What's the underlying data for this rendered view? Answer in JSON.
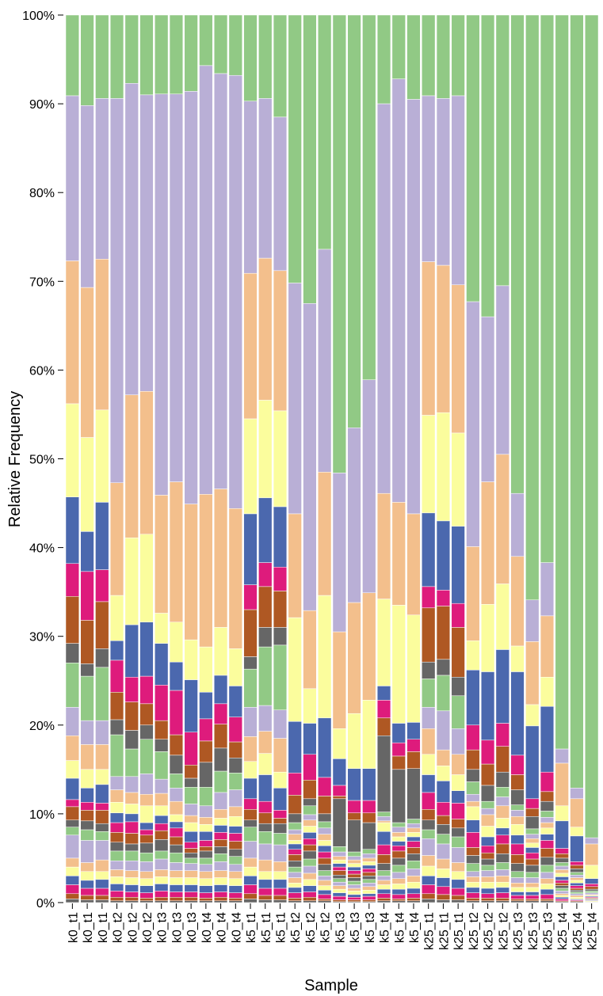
{
  "chart_data": {
    "type": "bar",
    "stacked": true,
    "xlabel": "Sample",
    "ylabel": "Relative Frequency",
    "ylim": [
      0,
      100
    ],
    "yticks": [
      "0%",
      "10%",
      "20%",
      "30%",
      "40%",
      "50%",
      "60%",
      "70%",
      "80%",
      "90%",
      "100%"
    ],
    "grid": false,
    "legend": "none",
    "categories": [
      "k0_t1",
      "k0_t1",
      "k0_t1",
      "k0_t2",
      "k0_t2",
      "k0_t2",
      "k0_t3",
      "k0_t3",
      "k0_t3",
      "k0_t4",
      "k0_t4",
      "k0_t4",
      "k5_t1",
      "k5_t1",
      "k5_t1",
      "k5_t2",
      "k5_t2",
      "k5_t2",
      "k5_t3",
      "k5_t3",
      "k5_t3",
      "k5_t4",
      "k5_t4",
      "k5_t4",
      "k25_t1",
      "k25_t1",
      "k25_t1",
      "k25_t2",
      "k25_t2",
      "k25_t2",
      "k25_t3",
      "k25_t3",
      "k25_t3",
      "k25_t4",
      "k25_t4",
      "k25_t4"
    ],
    "colors": [
      "#91c985",
      "#b9afd6",
      "#f3bf8c",
      "#fbfd9d",
      "#4b68ae",
      "#de1b7c",
      "#af5823",
      "#666666",
      "#91c985",
      "#b9afd6",
      "#f3bf8c",
      "#fbfd9d",
      "#4b68ae",
      "#de1b7c",
      "#af5823",
      "#666666",
      "#91c985",
      "#b9afd6",
      "#f3bf8c",
      "#fbfd9d",
      "#4b68ae",
      "#de1b7c",
      "#af5823",
      "#666666"
    ],
    "boundaries": [
      [
        100,
        90.9,
        72.3,
        56.2,
        45.7,
        38.2,
        34.5,
        29.2,
        27.0,
        22.0,
        18.8,
        16.0,
        14.0,
        11.6,
        10.8,
        9.3,
        8.5,
        7.6,
        5.0,
        4.0,
        3.0,
        2.0,
        1.0,
        0.4
      ],
      [
        100,
        89.8,
        69.3,
        52.4,
        41.8,
        37.3,
        31.8,
        26.9,
        25.5,
        20.5,
        17.8,
        15.0,
        12.9,
        11.3,
        10.4,
        9.2,
        8.2,
        7.0,
        4.5,
        3.5,
        2.5,
        1.6,
        0.8,
        0.3
      ],
      [
        100,
        90.6,
        72.5,
        55.5,
        45.1,
        37.5,
        33.9,
        28.6,
        26.5,
        20.5,
        17.8,
        15.0,
        13.3,
        11.2,
        10.4,
        8.9,
        8.0,
        7.0,
        4.8,
        3.5,
        2.6,
        1.6,
        0.8,
        0.3
      ],
      [
        100,
        90.6,
        47.3,
        34.6,
        29.5,
        27.3,
        23.7,
        20.6,
        18.9,
        14.2,
        12.7,
        11.3,
        10.1,
        9.0,
        7.9,
        6.8,
        5.8,
        4.7,
        3.7,
        2.9,
        2.1,
        1.3,
        0.6,
        0.2
      ],
      [
        100,
        92.3,
        57.2,
        41.1,
        31.3,
        25.4,
        22.6,
        19.4,
        17.3,
        14.2,
        12.4,
        11.1,
        10.0,
        9.1,
        7.8,
        6.6,
        5.8,
        4.7,
        3.6,
        2.8,
        2.0,
        1.2,
        0.6,
        0.2
      ],
      [
        100,
        91.0,
        57.6,
        41.5,
        31.6,
        25.5,
        22.4,
        20.0,
        18.4,
        14.5,
        12.2,
        10.9,
        9.0,
        8.2,
        7.6,
        6.7,
        5.6,
        4.6,
        3.5,
        2.7,
        1.9,
        1.1,
        0.5,
        0.2
      ],
      [
        100,
        91.1,
        45.9,
        32.6,
        29.2,
        24.5,
        20.5,
        18.4,
        17.0,
        13.9,
        12.3,
        10.9,
        9.8,
        8.9,
        8.1,
        7.1,
        5.8,
        4.9,
        3.7,
        2.9,
        2.1,
        1.3,
        0.6,
        0.2
      ],
      [
        100,
        91.1,
        47.4,
        31.6,
        27.1,
        23.9,
        18.9,
        16.6,
        14.5,
        12.9,
        11.4,
        9.9,
        9.1,
        8.4,
        7.4,
        6.5,
        5.6,
        4.5,
        3.6,
        2.8,
        2.0,
        1.2,
        0.6,
        0.2
      ],
      [
        100,
        91.4,
        44.9,
        29.6,
        25.1,
        19.2,
        15.5,
        14.0,
        13.0,
        11.1,
        9.8,
        9.0,
        8.0,
        6.8,
        6.1,
        5.6,
        5.0,
        4.4,
        3.6,
        2.8,
        2.0,
        1.2,
        0.6,
        0.2
      ],
      [
        100,
        94.3,
        46.0,
        28.8,
        23.7,
        20.7,
        18.2,
        15.8,
        13.0,
        10.9,
        9.6,
        8.8,
        8.0,
        7.0,
        6.3,
        5.8,
        5.0,
        4.3,
        3.5,
        2.7,
        1.9,
        1.1,
        0.5,
        0.2
      ],
      [
        100,
        93.4,
        46.6,
        31.0,
        25.6,
        22.4,
        20.1,
        17.4,
        14.8,
        12.4,
        10.5,
        9.5,
        8.7,
        7.9,
        7.1,
        6.3,
        5.5,
        4.6,
        3.6,
        2.8,
        2.0,
        1.2,
        0.6,
        0.2
      ],
      [
        100,
        93.2,
        44.4,
        28.6,
        24.4,
        20.9,
        18.1,
        16.3,
        14.6,
        12.7,
        10.8,
        9.7,
        8.6,
        7.8,
        6.9,
        6.0,
        5.2,
        4.3,
        3.5,
        2.7,
        1.9,
        1.1,
        0.5,
        0.2
      ],
      [
        100,
        90.3,
        70.9,
        54.5,
        43.8,
        35.8,
        33.0,
        27.7,
        26.3,
        22.0,
        18.7,
        15.9,
        14.0,
        11.7,
        10.5,
        9.3,
        8.5,
        6.9,
        5.0,
        4.0,
        3.0,
        2.0,
        1.0,
        0.4
      ],
      [
        100,
        90.6,
        72.6,
        56.6,
        45.6,
        38.3,
        35.6,
        31.0,
        28.8,
        22.2,
        19.3,
        16.8,
        14.4,
        11.4,
        10.1,
        8.9,
        8.0,
        6.6,
        4.8,
        3.5,
        2.6,
        1.6,
        0.8,
        0.3
      ],
      [
        100,
        88.5,
        71.2,
        55.4,
        44.6,
        37.8,
        35.1,
        31.0,
        29.0,
        21.7,
        18.5,
        14.7,
        12.9,
        10.4,
        9.5,
        8.9,
        7.8,
        6.5,
        4.6,
        3.5,
        2.6,
        1.6,
        0.8,
        0.3
      ],
      [
        100,
        69.8,
        43.8,
        32.1,
        20.4,
        14.6,
        12.1,
        10.0,
        9.0,
        8.2,
        7.7,
        7.0,
        6.6,
        6.0,
        5.4,
        4.7,
        4.0,
        3.4,
        2.8,
        2.2,
        1.7,
        1.1,
        0.5,
        0.2
      ],
      [
        100,
        67.5,
        32.9,
        24.1,
        20.2,
        16.7,
        13.8,
        11.7,
        10.9,
        9.9,
        9.3,
        8.6,
        7.9,
        7.2,
        6.5,
        5.8,
        4.9,
        4.1,
        3.3,
        2.6,
        1.9,
        1.2,
        0.6,
        0.2
      ],
      [
        100,
        73.6,
        48.5,
        34.6,
        20.8,
        14.1,
        12.0,
        10.0,
        9.1,
        8.4,
        7.7,
        7.0,
        6.4,
        5.7,
        5.0,
        4.3,
        3.6,
        3.0,
        2.5,
        1.9,
        1.4,
        0.9,
        0.4,
        0.2
      ],
      [
        100,
        48.4,
        30.5,
        19.6,
        16.2,
        13.2,
        12.0,
        11.7,
        6.3,
        5.7,
        5.2,
        4.8,
        4.4,
        4.0,
        3.6,
        3.1,
        2.7,
        2.3,
        1.9,
        1.5,
        1.1,
        0.7,
        0.3,
        0.1
      ],
      [
        100,
        53.5,
        33.8,
        21.3,
        15.1,
        11.5,
        10.1,
        9.3,
        5.7,
        5.2,
        4.8,
        4.4,
        4.0,
        3.6,
        3.2,
        2.8,
        2.4,
        2.0,
        1.6,
        1.3,
        0.9,
        0.6,
        0.3,
        0.1
      ],
      [
        100,
        58.9,
        34.9,
        22.8,
        15.1,
        11.5,
        10.1,
        9.0,
        6.0,
        5.5,
        5.0,
        4.6,
        4.2,
        3.8,
        3.4,
        3.0,
        2.6,
        2.2,
        1.8,
        1.4,
        1.0,
        0.7,
        0.3,
        0.1
      ],
      [
        100,
        90.0,
        46.1,
        34.2,
        24.4,
        22.8,
        20.8,
        18.8,
        10.2,
        9.7,
        9.2,
        9.0,
        8.0,
        6.5,
        5.4,
        4.4,
        3.6,
        3.0,
        2.5,
        2.0,
        1.5,
        1.0,
        0.5,
        0.2
      ],
      [
        100,
        92.8,
        45.1,
        33.5,
        20.2,
        18.0,
        16.5,
        15.0,
        9.0,
        8.5,
        7.9,
        7.4,
        6.9,
        6.4,
        5.8,
        5.0,
        4.2,
        3.4,
        2.7,
        2.1,
        1.5,
        0.9,
        0.4,
        0.2
      ],
      [
        100,
        90.5,
        43.8,
        32.4,
        20.3,
        18.4,
        17.0,
        15.1,
        9.4,
        8.9,
        8.4,
        7.9,
        7.4,
        6.9,
        6.2,
        5.5,
        4.7,
        3.8,
        3.0,
        2.3,
        1.6,
        1.0,
        0.5,
        0.2
      ],
      [
        100,
        90.9,
        72.2,
        54.9,
        43.9,
        35.6,
        33.2,
        27.1,
        25.2,
        22.0,
        19.6,
        16.7,
        14.4,
        12.4,
        10.5,
        9.3,
        8.2,
        7.2,
        5.3,
        4.1,
        3.0,
        2.0,
        1.0,
        0.4
      ],
      [
        100,
        90.6,
        71.8,
        55.2,
        43.0,
        35.2,
        33.4,
        27.4,
        25.6,
        21.6,
        17.2,
        15.4,
        13.7,
        11.3,
        9.8,
        8.8,
        7.7,
        6.6,
        4.9,
        3.8,
        2.8,
        1.8,
        0.9,
        0.3
      ],
      [
        100,
        90.9,
        69.6,
        52.9,
        42.4,
        33.7,
        31.0,
        25.4,
        23.3,
        19.6,
        16.7,
        14.4,
        12.6,
        11.2,
        9.4,
        8.4,
        7.4,
        6.2,
        4.5,
        3.5,
        2.6,
        1.6,
        0.8,
        0.3
      ],
      [
        100,
        67.7,
        40.1,
        29.5,
        26.2,
        20.0,
        17.2,
        15.0,
        13.6,
        12.2,
        11.4,
        10.8,
        9.3,
        7.9,
        6.2,
        5.3,
        4.4,
        3.5,
        2.9,
        2.3,
        1.7,
        1.1,
        0.5,
        0.2
      ],
      [
        100,
        66.0,
        47.4,
        33.6,
        26.0,
        18.3,
        15.6,
        13.2,
        11.4,
        10.6,
        9.9,
        8.6,
        7.4,
        6.4,
        5.6,
        4.9,
        4.2,
        3.6,
        2.9,
        2.3,
        1.6,
        1.0,
        0.5,
        0.2
      ],
      [
        100,
        69.5,
        50.5,
        35.9,
        28.5,
        20.2,
        17.6,
        14.7,
        13.0,
        11.9,
        10.9,
        9.5,
        8.4,
        7.6,
        6.6,
        5.5,
        4.5,
        3.7,
        3.0,
        2.3,
        1.7,
        1.1,
        0.5,
        0.2
      ],
      [
        100,
        46.1,
        39.0,
        28.9,
        26.0,
        16.6,
        14.4,
        12.7,
        11.0,
        10.4,
        9.7,
        8.8,
        7.6,
        6.6,
        5.4,
        4.4,
        3.5,
        2.8,
        2.2,
        1.7,
        1.2,
        0.8,
        0.4,
        0.2
      ],
      [
        100,
        34.1,
        29.4,
        22.3,
        19.9,
        11.7,
        10.6,
        9.7,
        8.3,
        7.7,
        7.2,
        6.7,
        6.2,
        5.6,
        4.9,
        4.2,
        3.4,
        2.8,
        2.2,
        1.7,
        1.2,
        0.8,
        0.4,
        0.2
      ],
      [
        100,
        38.3,
        32.3,
        25.4,
        22.1,
        14.7,
        12.5,
        11.4,
        10.3,
        9.6,
        9.0,
        8.4,
        7.7,
        7.0,
        6.1,
        5.1,
        4.2,
        3.4,
        2.7,
        2.1,
        1.5,
        0.9,
        0.4,
        0.2
      ],
      [
        100,
        17.3,
        15.7,
        10.9,
        9.2,
        6.1,
        5.5,
        5.0,
        4.5,
        4.1,
        3.7,
        3.3,
        2.9,
        2.5,
        2.2,
        1.9,
        1.6,
        1.3,
        1.0,
        0.8,
        0.6,
        0.4,
        0.2,
        0.1
      ],
      [
        100,
        12.9,
        11.7,
        8.5,
        7.5,
        4.6,
        4.2,
        3.8,
        3.4,
        3.1,
        2.8,
        2.5,
        2.2,
        1.9,
        1.6,
        1.4,
        1.2,
        1.0,
        0.8,
        0.6,
        0.4,
        0.3,
        0.2,
        0.1
      ],
      [
        100,
        7.3,
        6.6,
        4.2,
        2.7,
        2.1,
        1.8,
        1.5,
        1.3,
        1.1,
        0.9,
        0.8,
        0.7,
        0.6,
        0.5,
        0.4,
        0.3,
        0.3,
        0.2,
        0.2,
        0.1,
        0.1,
        0.1,
        0.05
      ]
    ]
  }
}
